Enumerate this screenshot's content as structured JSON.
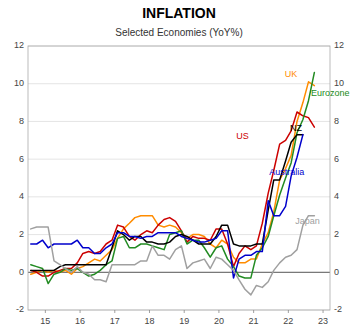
{
  "chart_data": {
    "type": "line",
    "title": "INFLATION",
    "subtitle": "Selected Economies (YoY%)",
    "xlim": [
      2014.5,
      2023.2
    ],
    "xticks": [
      {
        "value": 2015,
        "label": "15"
      },
      {
        "value": 2016,
        "label": "16"
      },
      {
        "value": 2017,
        "label": "17"
      },
      {
        "value": 2018,
        "label": "18"
      },
      {
        "value": 2019,
        "label": "19"
      },
      {
        "value": 2020,
        "label": "20"
      },
      {
        "value": 2021,
        "label": "21"
      },
      {
        "value": 2022,
        "label": "22"
      },
      {
        "value": 2023,
        "label": "23"
      }
    ],
    "ylim": [
      -2,
      12
    ],
    "yticks": [
      -2,
      0,
      2,
      4,
      6,
      8,
      10,
      12
    ],
    "y2lim": [
      -2,
      12
    ],
    "y2ticks": [
      -2,
      0,
      2,
      4,
      6,
      8,
      10,
      12
    ],
    "grid": true,
    "series": [
      {
        "name": "UK",
        "color": "#FF8C00",
        "x": [
          2014.58,
          2014.75,
          2014.92,
          2015.08,
          2015.25,
          2015.42,
          2015.58,
          2015.75,
          2015.92,
          2016.08,
          2016.25,
          2016.42,
          2016.58,
          2016.75,
          2016.92,
          2017.08,
          2017.25,
          2017.42,
          2017.58,
          2017.75,
          2017.92,
          2018.08,
          2018.25,
          2018.42,
          2018.58,
          2018.75,
          2018.92,
          2019.08,
          2019.25,
          2019.42,
          2019.58,
          2019.75,
          2019.92,
          2020.08,
          2020.25,
          2020.42,
          2020.58,
          2020.75,
          2020.92,
          2021.08,
          2021.25,
          2021.42,
          2021.58,
          2021.75,
          2021.92,
          2022.08,
          2022.25,
          2022.42,
          2022.58,
          2022.75
        ],
        "values": [
          -0.1,
          0.0,
          0.1,
          0.0,
          0.1,
          0.0,
          0.1,
          -0.1,
          0.2,
          0.3,
          0.5,
          0.7,
          0.6,
          0.9,
          1.2,
          1.8,
          2.3,
          2.6,
          2.9,
          3.0,
          3.0,
          3.0,
          2.5,
          2.4,
          2.5,
          2.4,
          2.1,
          1.8,
          2.0,
          2.0,
          1.9,
          1.5,
          1.3,
          1.7,
          1.5,
          0.8,
          0.5,
          0.5,
          0.7,
          0.7,
          1.5,
          2.1,
          3.2,
          4.9,
          5.5,
          6.2,
          8.0,
          9.0,
          10.1,
          9.9
        ]
      },
      {
        "name": "US",
        "color": "#CC0000",
        "x": [
          2014.58,
          2014.75,
          2014.92,
          2015.08,
          2015.25,
          2015.42,
          2015.58,
          2015.75,
          2015.92,
          2016.08,
          2016.25,
          2016.42,
          2016.58,
          2016.75,
          2016.92,
          2017.08,
          2017.25,
          2017.42,
          2017.58,
          2017.75,
          2017.92,
          2018.08,
          2018.25,
          2018.42,
          2018.58,
          2018.75,
          2018.92,
          2019.08,
          2019.25,
          2019.42,
          2019.58,
          2019.75,
          2019.92,
          2020.08,
          2020.25,
          2020.42,
          2020.58,
          2020.75,
          2020.92,
          2021.08,
          2021.25,
          2021.42,
          2021.58,
          2021.75,
          2021.92,
          2022.08,
          2022.25,
          2022.42,
          2022.58,
          2022.75
        ],
        "values": [
          0.1,
          0.0,
          -0.2,
          -0.2,
          0.0,
          0.1,
          0.2,
          0.2,
          0.5,
          1.0,
          1.1,
          1.0,
          1.1,
          1.5,
          1.7,
          2.5,
          2.4,
          1.9,
          1.7,
          2.0,
          2.2,
          2.1,
          2.5,
          2.8,
          2.9,
          2.7,
          2.2,
          1.6,
          1.9,
          1.8,
          1.8,
          1.7,
          2.3,
          2.3,
          1.5,
          0.3,
          1.0,
          1.4,
          1.2,
          1.4,
          2.6,
          4.2,
          5.4,
          6.8,
          7.0,
          7.5,
          8.5,
          8.3,
          8.2,
          7.7
        ]
      },
      {
        "name": "Eurozone",
        "color": "#228B22",
        "x": [
          2014.58,
          2014.75,
          2014.92,
          2015.08,
          2015.25,
          2015.42,
          2015.58,
          2015.75,
          2015.92,
          2016.08,
          2016.25,
          2016.42,
          2016.58,
          2016.75,
          2016.92,
          2017.08,
          2017.25,
          2017.42,
          2017.58,
          2017.75,
          2017.92,
          2018.08,
          2018.25,
          2018.42,
          2018.58,
          2018.75,
          2018.92,
          2019.08,
          2019.25,
          2019.42,
          2019.58,
          2019.75,
          2019.92,
          2020.08,
          2020.25,
          2020.42,
          2020.58,
          2020.75,
          2020.92,
          2021.08,
          2021.25,
          2021.42,
          2021.58,
          2021.75,
          2021.92,
          2022.08,
          2022.25,
          2022.42,
          2022.58,
          2022.75
        ],
        "values": [
          0.4,
          0.3,
          0.2,
          -0.6,
          -0.1,
          0.0,
          0.2,
          0.1,
          0.2,
          0.0,
          -0.2,
          -0.1,
          0.1,
          0.4,
          0.6,
          1.8,
          1.9,
          1.3,
          1.3,
          1.5,
          1.5,
          1.4,
          1.3,
          1.2,
          2.0,
          2.1,
          2.2,
          1.5,
          1.7,
          1.7,
          1.3,
          0.8,
          1.3,
          1.4,
          0.7,
          0.3,
          -0.2,
          -0.3,
          -0.3,
          0.9,
          1.3,
          1.9,
          3.0,
          4.1,
          5.0,
          5.8,
          7.4,
          8.1,
          9.1,
          10.6
        ]
      },
      {
        "name": "NZ",
        "color": "#000000",
        "x": [
          2014.58,
          2014.75,
          2014.92,
          2015.08,
          2015.25,
          2015.42,
          2015.58,
          2015.75,
          2015.92,
          2016.08,
          2016.25,
          2016.42,
          2016.58,
          2016.75,
          2016.92,
          2017.08,
          2017.25,
          2017.42,
          2017.58,
          2017.75,
          2017.92,
          2018.08,
          2018.25,
          2018.42,
          2018.58,
          2018.75,
          2018.92,
          2019.08,
          2019.25,
          2019.42,
          2019.58,
          2019.75,
          2019.92,
          2020.08,
          2020.25,
          2020.42,
          2020.58,
          2020.75,
          2020.92,
          2021.08,
          2021.25,
          2021.42,
          2021.58,
          2021.75,
          2021.92,
          2022.08,
          2022.25,
          2022.42
        ],
        "values": [
          0.1,
          0.1,
          0.1,
          0.1,
          0.1,
          0.3,
          0.4,
          0.4,
          0.4,
          0.4,
          0.4,
          0.4,
          0.4,
          0.4,
          1.3,
          2.2,
          2.0,
          1.7,
          1.9,
          1.9,
          1.6,
          1.6,
          1.5,
          1.5,
          1.6,
          1.9,
          2.0,
          1.9,
          1.7,
          1.5,
          1.5,
          1.5,
          1.9,
          2.5,
          2.5,
          1.5,
          1.4,
          1.4,
          1.4,
          1.5,
          1.5,
          3.3,
          4.9,
          4.9,
          5.9,
          6.9,
          7.3,
          7.3
        ]
      },
      {
        "name": "Australia",
        "color": "#0000CC",
        "x": [
          2014.58,
          2014.75,
          2014.92,
          2015.08,
          2015.25,
          2015.42,
          2015.58,
          2015.75,
          2015.92,
          2016.08,
          2016.25,
          2016.42,
          2016.58,
          2016.75,
          2016.92,
          2017.08,
          2017.25,
          2017.42,
          2017.58,
          2017.75,
          2017.92,
          2018.08,
          2018.25,
          2018.42,
          2018.58,
          2018.75,
          2018.92,
          2019.08,
          2019.25,
          2019.42,
          2019.58,
          2019.75,
          2019.92,
          2020.08,
          2020.25,
          2020.42,
          2020.58,
          2020.75,
          2020.92,
          2021.08,
          2021.25,
          2021.42,
          2021.58,
          2021.75,
          2021.92,
          2022.08,
          2022.25,
          2022.42
        ],
        "values": [
          1.5,
          1.5,
          1.7,
          1.3,
          1.5,
          1.5,
          1.5,
          1.5,
          1.7,
          1.3,
          1.3,
          1.0,
          1.0,
          1.3,
          1.5,
          2.1,
          2.1,
          1.9,
          1.9,
          1.8,
          1.9,
          1.9,
          2.1,
          2.1,
          2.1,
          2.1,
          1.9,
          1.8,
          1.7,
          1.6,
          1.6,
          1.7,
          1.8,
          2.2,
          2.2,
          -0.3,
          0.7,
          0.9,
          0.9,
          1.1,
          1.1,
          3.8,
          3.0,
          3.0,
          3.5,
          5.1,
          6.1,
          7.3
        ]
      },
      {
        "name": "Japan",
        "color": "#A0A0A0",
        "x": [
          2014.58,
          2014.75,
          2014.92,
          2015.08,
          2015.25,
          2015.42,
          2015.58,
          2015.75,
          2015.92,
          2016.08,
          2016.25,
          2016.42,
          2016.58,
          2016.75,
          2016.92,
          2017.08,
          2017.25,
          2017.42,
          2017.58,
          2017.75,
          2017.92,
          2018.08,
          2018.25,
          2018.42,
          2018.58,
          2018.75,
          2018.92,
          2019.08,
          2019.25,
          2019.42,
          2019.58,
          2019.75,
          2019.92,
          2020.08,
          2020.25,
          2020.42,
          2020.58,
          2020.75,
          2020.92,
          2021.08,
          2021.25,
          2021.42,
          2021.58,
          2021.75,
          2021.92,
          2022.08,
          2022.25,
          2022.42,
          2022.58,
          2022.75
        ],
        "values": [
          2.3,
          2.4,
          2.4,
          2.4,
          0.6,
          0.4,
          0.2,
          0.0,
          0.3,
          0.0,
          -0.1,
          -0.4,
          -0.4,
          -0.5,
          0.4,
          0.4,
          0.4,
          0.4,
          0.4,
          0.6,
          0.6,
          1.4,
          0.9,
          0.9,
          0.7,
          1.2,
          1.4,
          0.2,
          0.5,
          0.6,
          0.7,
          0.2,
          0.8,
          0.7,
          0.4,
          0.1,
          -0.4,
          -0.9,
          -1.2,
          -0.7,
          -0.8,
          -0.5,
          0.1,
          0.5,
          0.8,
          0.9,
          1.2,
          2.5,
          3.0,
          3.0
        ]
      }
    ],
    "annotations": [
      {
        "text": "UK",
        "x": 2021.9,
        "y": 10.5
      },
      {
        "text": "US",
        "x": 2020.5,
        "y": 7.2
      },
      {
        "text": "Eurozone",
        "x": 2022.65,
        "y": 9.5
      },
      {
        "text": "NZ",
        "x": 2022.05,
        "y": 7.6
      },
      {
        "text": "Australia",
        "x": 2021.45,
        "y": 5.3
      },
      {
        "text": "Japan",
        "x": 2022.2,
        "y": 2.7
      }
    ]
  }
}
